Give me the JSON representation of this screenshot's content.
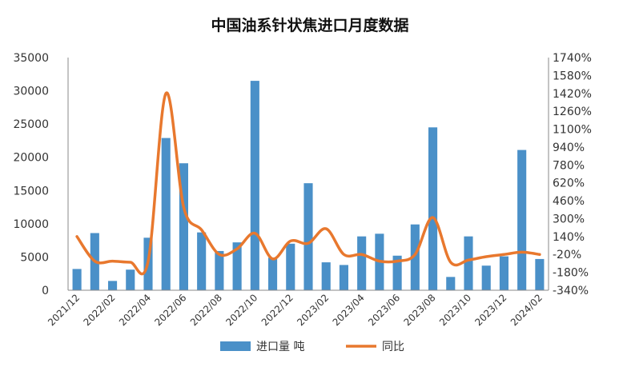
{
  "chart_data": {
    "type": "bar+line",
    "title": "中国油系针状焦进口月度数据",
    "categories": [
      "2021/12",
      "2022/01",
      "2022/02",
      "2022/03",
      "2022/04",
      "2022/05",
      "2022/06",
      "2022/07",
      "2022/08",
      "2022/09",
      "2022/10",
      "2022/11",
      "2022/12",
      "2023/01",
      "2023/02",
      "2023/03",
      "2023/04",
      "2023/05",
      "2023/06",
      "2023/07",
      "2023/08",
      "2023/09",
      "2023/10",
      "2023/11",
      "2023/12",
      "2024/01",
      "2024/02"
    ],
    "x_tick_labels": [
      "2021/12",
      "2022/02",
      "2022/04",
      "2022/06",
      "2022/08",
      "2022/10",
      "2022/12",
      "2023/02",
      "2023/04",
      "2023/06",
      "2023/08",
      "2023/10",
      "2023/12",
      "2024/02"
    ],
    "series": [
      {
        "name": "进口量 吨",
        "type": "bar",
        "axis": "left",
        "color": "#4a90c8",
        "values": [
          3200,
          8600,
          1400,
          3100,
          7900,
          22900,
          19100,
          8700,
          5900,
          7200,
          31500,
          4900,
          7000,
          16100,
          4200,
          3800,
          8100,
          8500,
          5200,
          9900,
          24500,
          2000,
          8100,
          3700,
          5100,
          21100,
          4700
        ]
      },
      {
        "name": "同比",
        "type": "line",
        "axis": "right",
        "color": "#e8782e",
        "unit": "%",
        "values": [
          140,
          -80,
          -80,
          -90,
          -80,
          1420,
          400,
          200,
          -20,
          30,
          170,
          -60,
          100,
          80,
          210,
          -20,
          -20,
          -80,
          -80,
          -20,
          310,
          -90,
          -70,
          -40,
          -20,
          0,
          -20
        ]
      }
    ],
    "y_left": {
      "min": 0,
      "max": 35000,
      "ticks": [
        "0",
        "5000",
        "10000",
        "15000",
        "20000",
        "25000",
        "30000",
        "35000"
      ]
    },
    "y_right": {
      "min": -340,
      "max": 1740,
      "ticks": [
        "-340%",
        "-180%",
        "-20%",
        "140%",
        "300%",
        "460%",
        "620%",
        "780%",
        "940%",
        "1100%",
        "1260%",
        "1420%",
        "1580%",
        "1740%"
      ]
    },
    "grid": false,
    "legend_position": "bottom"
  }
}
